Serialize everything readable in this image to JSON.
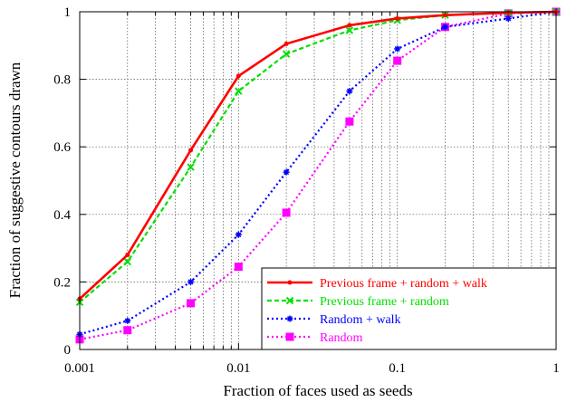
{
  "chart_data": {
    "type": "line",
    "xlabel": "Fraction of faces used as seeds",
    "ylabel": "Fraction of suggestive contours drawn",
    "xscale": "log",
    "xlim": [
      0.001,
      1
    ],
    "ylim": [
      0,
      1
    ],
    "grid": true,
    "legend_position": "bottom-right",
    "x_tick_labels": [
      "0.001",
      "0.01",
      "0.1",
      "1"
    ],
    "y_tick_labels": [
      "0",
      "0.2",
      "0.4",
      "0.6",
      "0.8",
      "1"
    ],
    "series": [
      {
        "name": "Previous frame + random + walk",
        "color": "#ff0000",
        "line_style": "solid",
        "marker": "dot",
        "x": [
          0.001,
          0.002,
          0.005,
          0.01,
          0.02,
          0.05,
          0.1,
          0.2,
          0.5,
          1
        ],
        "y": [
          0.15,
          0.28,
          0.59,
          0.81,
          0.905,
          0.96,
          0.98,
          0.99,
          0.997,
          1.0
        ]
      },
      {
        "name": "Previous frame + random",
        "color": "#00e000",
        "line_style": "dashed",
        "marker": "x",
        "x": [
          0.001,
          0.002,
          0.005,
          0.01,
          0.02,
          0.05,
          0.1,
          0.2,
          0.5,
          1
        ],
        "y": [
          0.14,
          0.26,
          0.54,
          0.765,
          0.875,
          0.945,
          0.975,
          0.99,
          0.997,
          1.0
        ]
      },
      {
        "name": "Random + walk",
        "color": "#0000ff",
        "line_style": "dotted",
        "marker": "star",
        "x": [
          0.001,
          0.002,
          0.005,
          0.01,
          0.02,
          0.05,
          0.1,
          0.2,
          0.5,
          1
        ],
        "y": [
          0.045,
          0.085,
          0.2,
          0.34,
          0.525,
          0.765,
          0.89,
          0.955,
          0.98,
          1.0
        ]
      },
      {
        "name": "Random",
        "color": "#ff00ff",
        "line_style": "dotted",
        "marker": "square",
        "x": [
          0.001,
          0.002,
          0.005,
          0.01,
          0.02,
          0.05,
          0.1,
          0.2,
          0.5,
          1
        ],
        "y": [
          0.03,
          0.057,
          0.137,
          0.245,
          0.405,
          0.675,
          0.855,
          0.955,
          0.995,
          1.0
        ]
      }
    ]
  }
}
